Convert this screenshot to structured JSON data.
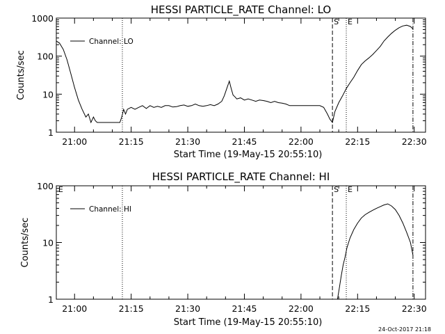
{
  "footer": "24-Oct-2017 21:18",
  "chart_data": [
    {
      "type": "line",
      "title": "HESSI PARTICLE_RATE Channel: LO",
      "xlabel": "Start Time (19-May-15 20:55:10)",
      "ylabel": "Counts/sec",
      "yscale": "log",
      "ylim": [
        1,
        1000
      ],
      "xlim": [
        "20:55:10",
        "22:33:00"
      ],
      "xticks": [
        "21:00",
        "21:15",
        "21:30",
        "21:45",
        "22:00",
        "22:15",
        "22:30"
      ],
      "yticks": [
        "1",
        "10",
        "100",
        "1000"
      ],
      "legend": "top-left",
      "markers": [
        {
          "label": "",
          "time": "21:12:40",
          "style": "dotted"
        },
        {
          "label": "S",
          "time": "22:08:20",
          "style": "dashed"
        },
        {
          "label": "E",
          "time": "22:12:00",
          "style": "dotted"
        },
        {
          "label": "",
          "time": "22:29:40",
          "style": "dashdot"
        }
      ],
      "series": [
        {
          "name": "Channel: LO",
          "x": [
            "20:55:10",
            "20:56:00",
            "20:57:00",
            "20:58:00",
            "20:59:00",
            "21:00:00",
            "21:01:00",
            "21:02:00",
            "21:03:00",
            "21:03:40",
            "21:04:20",
            "21:05:00",
            "21:05:30",
            "21:06:00",
            "21:07:00",
            "21:08:00",
            "21:08:30",
            "21:09:00",
            "21:09:30",
            "21:10:00",
            "21:10:20",
            "21:10:40",
            "21:11:20",
            "21:12:00",
            "21:12:30",
            "21:13:00",
            "21:13:30",
            "21:14:00",
            "21:15:00",
            "21:16:00",
            "21:17:00",
            "21:18:00",
            "21:19:00",
            "21:20:00",
            "21:21:00",
            "21:22:00",
            "21:23:00",
            "21:24:00",
            "21:25:00",
            "21:26:00",
            "21:27:00",
            "21:28:00",
            "21:29:00",
            "21:30:00",
            "21:31:00",
            "21:32:00",
            "21:33:00",
            "21:34:00",
            "21:35:00",
            "21:36:00",
            "21:37:00",
            "21:38:00",
            "21:39:00",
            "21:39:40",
            "21:40:20",
            "21:41:00",
            "21:41:30",
            "21:42:00",
            "21:42:30",
            "21:43:00",
            "21:44:00",
            "21:45:00",
            "21:46:00",
            "21:47:00",
            "21:48:00",
            "21:49:00",
            "21:50:00",
            "21:51:00",
            "21:52:00",
            "21:53:00",
            "21:54:00",
            "21:55:00",
            "21:56:00",
            "21:57:00",
            "21:58:00",
            "21:59:00",
            "22:00:00",
            "22:01:00",
            "22:02:00",
            "22:03:00",
            "22:04:00",
            "22:05:00",
            "22:06:00",
            "22:07:00",
            "22:07:40",
            "22:08:20",
            "22:09:00",
            "22:10:00",
            "22:11:00",
            "22:12:00",
            "22:13:00",
            "22:14:00",
            "22:15:00",
            "22:16:00",
            "22:17:00",
            "22:18:00",
            "22:19:00",
            "22:20:00",
            "22:21:00",
            "22:22:00",
            "22:23:00",
            "22:24:00",
            "22:25:00",
            "22:26:00",
            "22:27:00",
            "22:28:00",
            "22:29:00",
            "22:29:40"
          ],
          "y": [
            250,
            220,
            150,
            80,
            35,
            15,
            7,
            4,
            2.5,
            3,
            1.8,
            2.5,
            2,
            1.8,
            1.8,
            1.8,
            1.8,
            1.8,
            1.8,
            1.8,
            1.8,
            1.8,
            1.8,
            1.8,
            2.5,
            4,
            3,
            4,
            4.5,
            4,
            4.5,
            5,
            4.2,
            5,
            4.5,
            4.8,
            4.5,
            5,
            5,
            4.6,
            4.7,
            5,
            5.2,
            4.8,
            5,
            5.5,
            5,
            4.8,
            5,
            5.3,
            5,
            5.5,
            6.5,
            9,
            14,
            22,
            14,
            9.5,
            8.5,
            7.5,
            8,
            7,
            7.5,
            7,
            6.5,
            7,
            6.8,
            6.5,
            6,
            6.5,
            6,
            5.8,
            5.5,
            5,
            5,
            5,
            5,
            5,
            5,
            5,
            5,
            5,
            4.5,
            3,
            2.2,
            1.8,
            3.5,
            6,
            9,
            14,
            20,
            28,
            42,
            60,
            75,
            90,
            110,
            140,
            180,
            250,
            320,
            400,
            480,
            560,
            620,
            650,
            600,
            520
          ]
        }
      ]
    },
    {
      "type": "line",
      "title": "HESSI PARTICLE_RATE Channel: HI",
      "xlabel": "Start Time (19-May-15 20:55:10)",
      "ylabel": "Counts/sec",
      "yscale": "log",
      "ylim": [
        1,
        100
      ],
      "xlim": [
        "20:55:10",
        "22:33:00"
      ],
      "xticks": [
        "21:00",
        "21:15",
        "21:30",
        "21:45",
        "22:00",
        "22:15",
        "22:30"
      ],
      "yticks": [
        "1",
        "10",
        "100"
      ],
      "legend": "top-left",
      "markers": [
        {
          "label": "E",
          "time": "20:55:20",
          "style": "none"
        },
        {
          "label": "",
          "time": "21:12:40",
          "style": "dotted"
        },
        {
          "label": "S",
          "time": "22:08:20",
          "style": "dashed"
        },
        {
          "label": "E",
          "time": "22:12:00",
          "style": "dotted"
        },
        {
          "label": "",
          "time": "22:29:40",
          "style": "dashdot"
        }
      ],
      "series": [
        {
          "name": "Channel: HI",
          "x": [
            "22:09:40",
            "22:10:10",
            "22:10:40",
            "22:11:10",
            "22:11:40",
            "22:12:10",
            "22:13:00",
            "22:14:00",
            "22:15:00",
            "22:16:00",
            "22:17:00",
            "22:18:00",
            "22:19:00",
            "22:20:00",
            "22:21:00",
            "22:22:00",
            "22:23:00",
            "22:24:00",
            "22:25:00",
            "22:26:00",
            "22:27:00",
            "22:28:00",
            "22:29:00",
            "22:29:40"
          ],
          "y": [
            1,
            1.6,
            2.6,
            4,
            5.5,
            8,
            12,
            17,
            22,
            27,
            31,
            34,
            37,
            40,
            43,
            46,
            48,
            44,
            38,
            30,
            22,
            15,
            10,
            6
          ]
        }
      ]
    }
  ]
}
